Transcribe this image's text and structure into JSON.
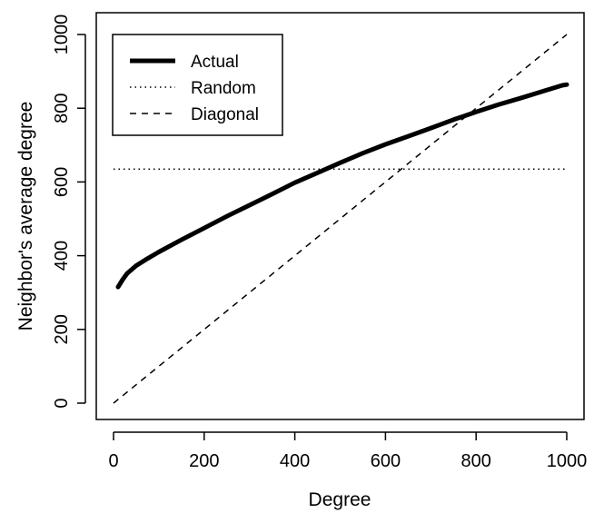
{
  "chart_data": {
    "type": "line",
    "title": "",
    "xlabel": "Degree",
    "ylabel": "Neighbor's average degree",
    "xlim": [
      0,
      1000
    ],
    "ylim": [
      0,
      1000
    ],
    "xticks": [
      0,
      200,
      400,
      600,
      800,
      1000
    ],
    "yticks": [
      0,
      200,
      400,
      600,
      800,
      1000
    ],
    "xtick_labels": [
      "0",
      "200",
      "400",
      "600",
      "800",
      "1000"
    ],
    "ytick_labels": [
      "0",
      "200",
      "400",
      "600",
      "800",
      "1000"
    ],
    "grid": false,
    "legend_position": "top-left",
    "series": [
      {
        "name": "Actual",
        "style": "solid-thick",
        "color": "#000000",
        "x": [
          10,
          20,
          30,
          50,
          75,
          100,
          150,
          200,
          250,
          300,
          350,
          400,
          450,
          500,
          550,
          600,
          650,
          700,
          750,
          800,
          850,
          900,
          950,
          990,
          1000
        ],
        "y": [
          315,
          335,
          352,
          373,
          392,
          410,
          443,
          475,
          507,
          537,
          567,
          598,
          625,
          652,
          678,
          702,
          724,
          746,
          769,
          790,
          810,
          828,
          847,
          862,
          864
        ]
      },
      {
        "name": "Random",
        "style": "dotted",
        "color": "#000000",
        "x": [
          0,
          1000
        ],
        "y": [
          635,
          635
        ]
      },
      {
        "name": "Diagonal",
        "style": "dashed",
        "color": "#000000",
        "x": [
          0,
          1000
        ],
        "y": [
          0,
          1000
        ]
      }
    ]
  }
}
